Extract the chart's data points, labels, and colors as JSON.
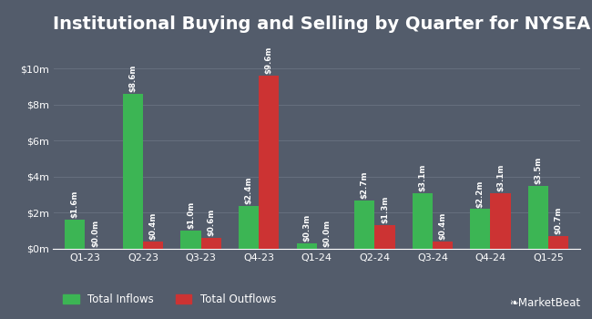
{
  "title": "Institutional Buying and Selling by Quarter for NYSEARCA:IBND",
  "quarters": [
    "Q1-23",
    "Q2-23",
    "Q3-23",
    "Q4-23",
    "Q1-24",
    "Q2-24",
    "Q3-24",
    "Q4-24",
    "Q1-25"
  ],
  "inflows": [
    1.6,
    8.6,
    1.0,
    2.4,
    0.3,
    2.7,
    3.1,
    2.2,
    3.5
  ],
  "outflows": [
    0.0,
    0.4,
    0.6,
    9.6,
    0.0,
    1.3,
    0.4,
    3.1,
    0.7
  ],
  "inflow_labels": [
    "$1.6m",
    "$8.6m",
    "$1.0m",
    "$2.4m",
    "$0.3m",
    "$2.7m",
    "$3.1m",
    "$2.2m",
    "$3.5m"
  ],
  "outflow_labels": [
    "$0.0m",
    "$0.4m",
    "$0.6m",
    "$9.6m",
    "$0.0m",
    "$1.3m",
    "$0.4m",
    "$3.1m",
    "$0.7m"
  ],
  "inflow_color": "#3cb554",
  "outflow_color": "#cc3333",
  "background_color": "#535c6b",
  "plot_bg_color": "#535c6b",
  "text_color": "#ffffff",
  "grid_color": "#666f7e",
  "ylabel_ticks": [
    "$0m",
    "$2m",
    "$4m",
    "$6m",
    "$8m",
    "$10m"
  ],
  "ytick_vals": [
    0,
    2,
    4,
    6,
    8,
    10
  ],
  "ylim": [
    0,
    11.5
  ],
  "legend_inflow": "Total Inflows",
  "legend_outflow": "Total Outflows",
  "bar_width": 0.35,
  "label_fontsize": 6.2,
  "title_fontsize": 14,
  "tick_fontsize": 8,
  "legend_fontsize": 8.5
}
